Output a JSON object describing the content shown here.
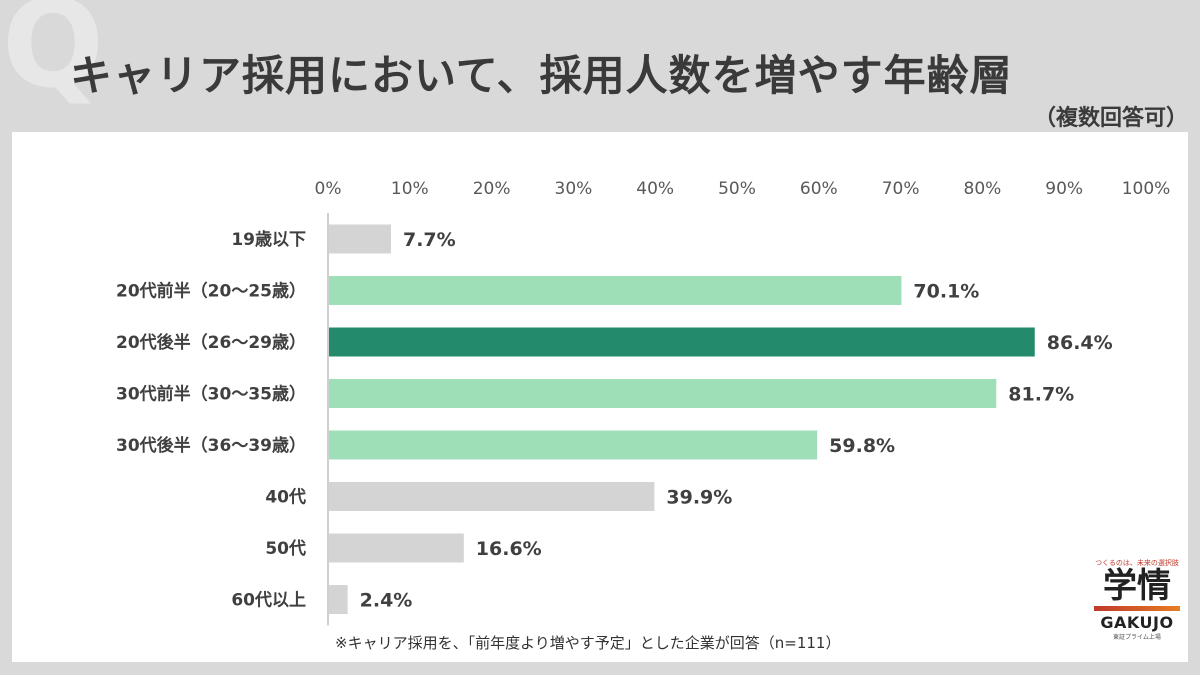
{
  "header": {
    "title": "キャリア採用において、採用人数を増やす年齢層",
    "subtitle": "（複数回答可）",
    "q_mark": "Q"
  },
  "chart_data": {
    "type": "bar",
    "orientation": "horizontal",
    "categories": [
      "19歳以下",
      "20代前半（20〜25歳）",
      "20代後半（26〜29歳）",
      "30代前半（30〜35歳）",
      "30代後半（36〜39歳）",
      "40代",
      "50代",
      "60代以上"
    ],
    "values": [
      7.7,
      70.1,
      86.4,
      81.7,
      59.8,
      39.9,
      16.6,
      2.4
    ],
    "value_labels": [
      "7.7%",
      "70.1%",
      "86.4%",
      "81.7%",
      "59.8%",
      "39.9%",
      "16.6%",
      "2.4%"
    ],
    "tick_labels": [
      "0%",
      "10%",
      "20%",
      "30%",
      "40%",
      "50%",
      "60%",
      "70%",
      "80%",
      "90%",
      "100%"
    ],
    "xlim": [
      0,
      100
    ],
    "bar_colors": [
      "#d4d4d4",
      "#9edfb7",
      "#238b6b",
      "#9edfb7",
      "#9edfb7",
      "#d4d4d4",
      "#d4d4d4",
      "#d4d4d4"
    ],
    "axis_color": "#bfbfbf",
    "grid": false,
    "title": "",
    "xlabel": "",
    "ylabel": ""
  },
  "footnote": "※キャリア採用を、「前年度より増やす予定」とした企業が回答（n=111）",
  "logo": {
    "tagline": "つくるのは、未来の選択肢",
    "kanji": "学情",
    "name": "GAKUJO",
    "sub": "東証プライム上場"
  }
}
